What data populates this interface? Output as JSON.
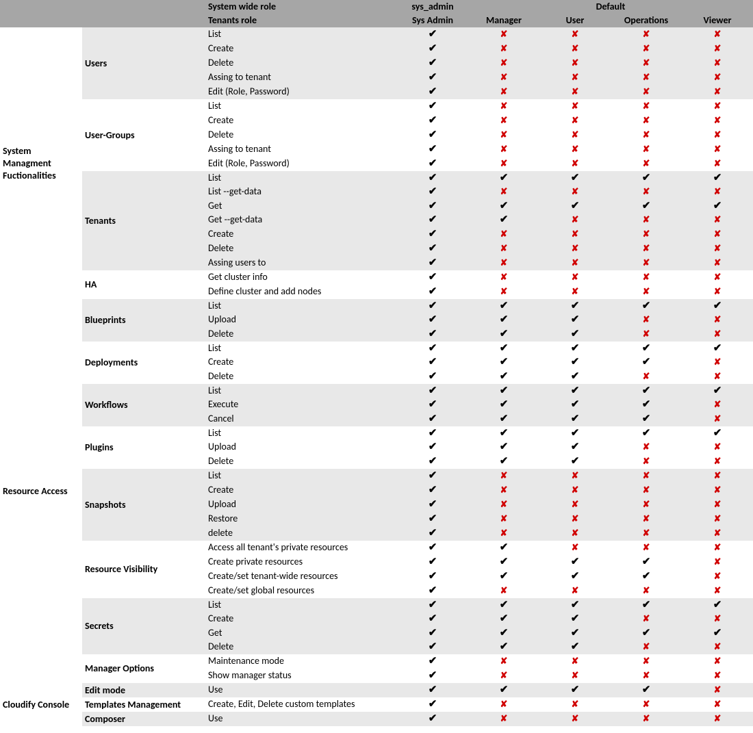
{
  "icons": {
    "true": "✔",
    "false": "✘"
  },
  "header": {
    "row1": {
      "col_action": "System wide role",
      "col_sysadmin": "sys_admin",
      "col_default_span": "Default"
    },
    "row2": {
      "col_action": "Tenants role",
      "cols": [
        "Sys Admin",
        "Manager",
        "User",
        "Operations",
        "Viewer"
      ]
    }
  },
  "sections": [
    {
      "label": "System Managment Fuctionalities",
      "groups": [
        {
          "label": "Users",
          "shade": true,
          "rows": [
            {
              "action": "List",
              "perm": [
                true,
                false,
                false,
                false,
                false
              ]
            },
            {
              "action": "Create",
              "perm": [
                true,
                false,
                false,
                false,
                false
              ]
            },
            {
              "action": "Delete",
              "perm": [
                true,
                false,
                false,
                false,
                false
              ]
            },
            {
              "action": "Assing to tenant",
              "perm": [
                true,
                false,
                false,
                false,
                false
              ]
            },
            {
              "action": "Edit (Role, Password)",
              "perm": [
                true,
                false,
                false,
                false,
                false
              ]
            }
          ]
        },
        {
          "label": "User-Groups",
          "shade": false,
          "rows": [
            {
              "action": "List",
              "perm": [
                true,
                false,
                false,
                false,
                false
              ]
            },
            {
              "action": "Create",
              "perm": [
                true,
                false,
                false,
                false,
                false
              ]
            },
            {
              "action": "Delete",
              "perm": [
                true,
                false,
                false,
                false,
                false
              ]
            },
            {
              "action": "Assing to tenant",
              "perm": [
                true,
                false,
                false,
                false,
                false
              ]
            },
            {
              "action": "Edit (Role, Password)",
              "perm": [
                true,
                false,
                false,
                false,
                false
              ]
            }
          ]
        },
        {
          "label": "Tenants",
          "shade": true,
          "rows": [
            {
              "action": "List",
              "perm": [
                true,
                true,
                true,
                true,
                true
              ]
            },
            {
              "action": "List --get-data",
              "perm": [
                true,
                false,
                false,
                false,
                false
              ]
            },
            {
              "action": "Get",
              "perm": [
                true,
                true,
                true,
                true,
                true
              ]
            },
            {
              "action": "Get --get-data",
              "perm": [
                true,
                true,
                false,
                false,
                false
              ]
            },
            {
              "action": "Create",
              "perm": [
                true,
                false,
                false,
                false,
                false
              ]
            },
            {
              "action": "Delete",
              "perm": [
                true,
                false,
                false,
                false,
                false
              ]
            },
            {
              "action": "Assing users to",
              "perm": [
                true,
                false,
                false,
                false,
                false
              ]
            }
          ]
        },
        {
          "label": "HA",
          "shade": false,
          "rows": [
            {
              "action": "Get cluster info",
              "perm": [
                true,
                false,
                false,
                false,
                false
              ]
            },
            {
              "action": "Define cluster and add nodes",
              "perm": [
                true,
                false,
                false,
                false,
                false
              ]
            }
          ]
        }
      ]
    },
    {
      "label": "Resource Access",
      "groups": [
        {
          "label": "Blueprints",
          "shade": true,
          "rows": [
            {
              "action": "List",
              "perm": [
                true,
                true,
                true,
                true,
                true
              ]
            },
            {
              "action": "Upload",
              "perm": [
                true,
                true,
                true,
                false,
                false
              ]
            },
            {
              "action": "Delete",
              "perm": [
                true,
                true,
                true,
                false,
                false
              ]
            }
          ]
        },
        {
          "label": "Deployments",
          "shade": false,
          "rows": [
            {
              "action": "List",
              "perm": [
                true,
                true,
                true,
                true,
                true
              ]
            },
            {
              "action": "Create",
              "perm": [
                true,
                true,
                true,
                true,
                false
              ]
            },
            {
              "action": "Delete",
              "perm": [
                true,
                true,
                true,
                false,
                false
              ]
            }
          ]
        },
        {
          "label": "Workflows",
          "shade": true,
          "rows": [
            {
              "action": "List",
              "perm": [
                true,
                true,
                true,
                true,
                true
              ]
            },
            {
              "action": "Execute",
              "perm": [
                true,
                true,
                true,
                true,
                false
              ]
            },
            {
              "action": "Cancel",
              "perm": [
                true,
                true,
                true,
                true,
                false
              ]
            }
          ]
        },
        {
          "label": "Plugins",
          "shade": false,
          "rows": [
            {
              "action": "List",
              "perm": [
                true,
                true,
                true,
                true,
                true
              ]
            },
            {
              "action": "Upload",
              "perm": [
                true,
                true,
                true,
                false,
                false
              ]
            },
            {
              "action": "Delete",
              "perm": [
                true,
                true,
                true,
                false,
                false
              ]
            }
          ]
        },
        {
          "label": "Snapshots",
          "shade": true,
          "rows": [
            {
              "action": "List",
              "perm": [
                true,
                false,
                false,
                false,
                false
              ]
            },
            {
              "action": "Create",
              "perm": [
                true,
                false,
                false,
                false,
                false
              ]
            },
            {
              "action": "Upload",
              "perm": [
                true,
                false,
                false,
                false,
                false
              ]
            },
            {
              "action": "Restore",
              "perm": [
                true,
                false,
                false,
                false,
                false
              ]
            },
            {
              "action": "delete",
              "perm": [
                true,
                false,
                false,
                false,
                false
              ]
            }
          ]
        },
        {
          "label": "Resource Visibility",
          "shade": false,
          "rows": [
            {
              "action": "Access all tenant's private resources",
              "perm": [
                true,
                true,
                false,
                false,
                false
              ]
            },
            {
              "action": "Create private resources",
              "perm": [
                true,
                true,
                true,
                true,
                false
              ]
            },
            {
              "action": "Create/set tenant-wide resources",
              "perm": [
                true,
                true,
                true,
                true,
                false
              ]
            },
            {
              "action": "Create/set global resources",
              "perm": [
                true,
                false,
                false,
                false,
                false
              ]
            }
          ]
        },
        {
          "label": "Secrets",
          "shade": true,
          "rows": [
            {
              "action": "List",
              "perm": [
                true,
                true,
                true,
                true,
                true
              ]
            },
            {
              "action": "Create",
              "perm": [
                true,
                true,
                true,
                false,
                false
              ]
            },
            {
              "action": "Get",
              "perm": [
                true,
                true,
                true,
                true,
                true
              ]
            },
            {
              "action": "Delete",
              "perm": [
                true,
                true,
                true,
                false,
                false
              ]
            }
          ]
        },
        {
          "label": "Manager Options",
          "shade": false,
          "rows": [
            {
              "action": "Maintenance mode",
              "perm": [
                true,
                false,
                false,
                false,
                false
              ]
            },
            {
              "action": "Show manager status",
              "perm": [
                true,
                false,
                false,
                false,
                false
              ]
            }
          ]
        }
      ]
    },
    {
      "label": "Cloudify Console",
      "groups": [
        {
          "label": "Edit mode",
          "shade": true,
          "rows": [
            {
              "action": "Use",
              "perm": [
                true,
                true,
                true,
                true,
                false
              ]
            }
          ]
        },
        {
          "label": "Templates Management",
          "shade": false,
          "rows": [
            {
              "action": "Create, Edit, Delete custom templates",
              "perm": [
                true,
                false,
                false,
                false,
                false
              ]
            }
          ]
        },
        {
          "label": "Composer",
          "shade": true,
          "rows": [
            {
              "action": "Use",
              "perm": [
                true,
                false,
                false,
                false,
                false
              ]
            }
          ]
        }
      ]
    }
  ]
}
